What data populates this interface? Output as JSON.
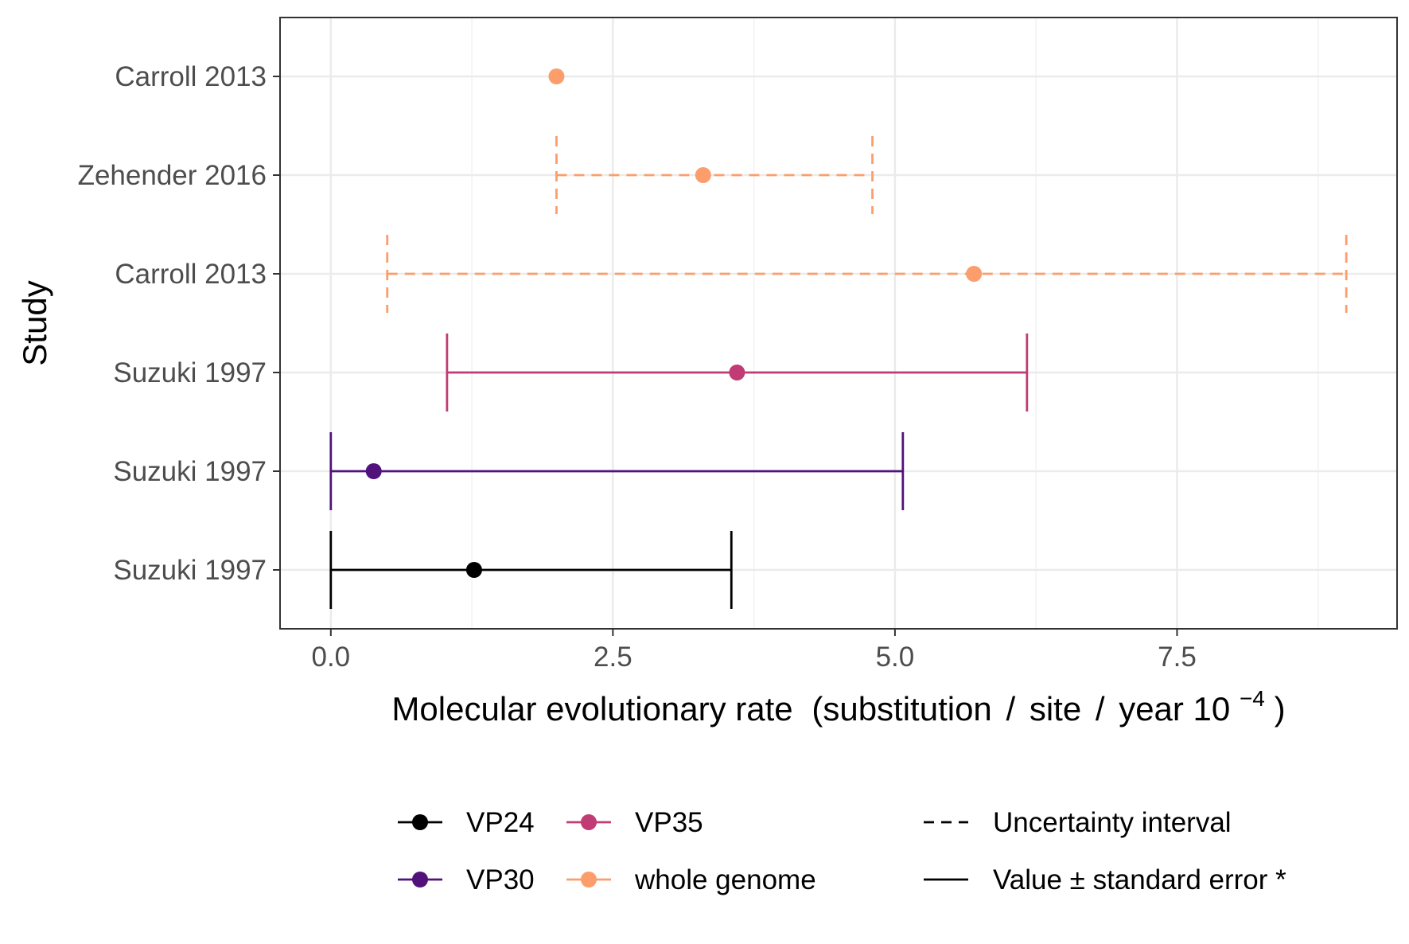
{
  "chart_data": {
    "type": "scatter",
    "subtype": "point-range / error bars",
    "title": "",
    "xlabel": "Molecular evolutionary rate",
    "xlabel_unit_parts": [
      "(substitution",
      "site",
      "year 10",
      "−4",
      ")"
    ],
    "ylabel": "Study",
    "xlim": [
      -0.45,
      9.45
    ],
    "xticks": [
      0.0,
      2.5,
      5.0,
      7.5
    ],
    "xtick_labels": [
      "0.0",
      "2.5",
      "5.0",
      "7.5"
    ],
    "grid": true,
    "rows": [
      {
        "label": "Carroll 2013",
        "series": "whole genome",
        "value": 2.0,
        "low": null,
        "high": null,
        "interval": "none"
      },
      {
        "label": "Zehender 2016",
        "series": "whole genome",
        "value": 3.3,
        "low": 2.0,
        "high": 4.8,
        "interval": "Uncertainty interval"
      },
      {
        "label": "Carroll 2013",
        "series": "whole genome",
        "value": 5.7,
        "low": 0.5,
        "high": 9.0,
        "interval": "Uncertainty interval"
      },
      {
        "label": "Suzuki 1997",
        "series": "VP35",
        "value": 3.6,
        "low": 1.03,
        "high": 6.17,
        "interval": "Value ± standard error *"
      },
      {
        "label": "Suzuki 1997",
        "series": "VP30",
        "value": 0.38,
        "low": 0.0,
        "high": 5.07,
        "interval": "Value ± standard error *"
      },
      {
        "label": "Suzuki 1997",
        "series": "VP24",
        "value": 1.27,
        "low": 0.0,
        "high": 3.55,
        "interval": "Value ± standard error *"
      }
    ],
    "series": [
      {
        "name": "VP24",
        "color": "#000000"
      },
      {
        "name": "VP30",
        "color": "#51127C"
      },
      {
        "name": "VP35",
        "color": "#C13B75"
      },
      {
        "name": "whole genome",
        "color": "#FC9E6C"
      }
    ],
    "linetype_legend": [
      {
        "name": "Uncertainty interval",
        "style": "dashed"
      },
      {
        "name": "Value ± standard error *",
        "style": "solid"
      }
    ],
    "legend_position": "bottom"
  }
}
